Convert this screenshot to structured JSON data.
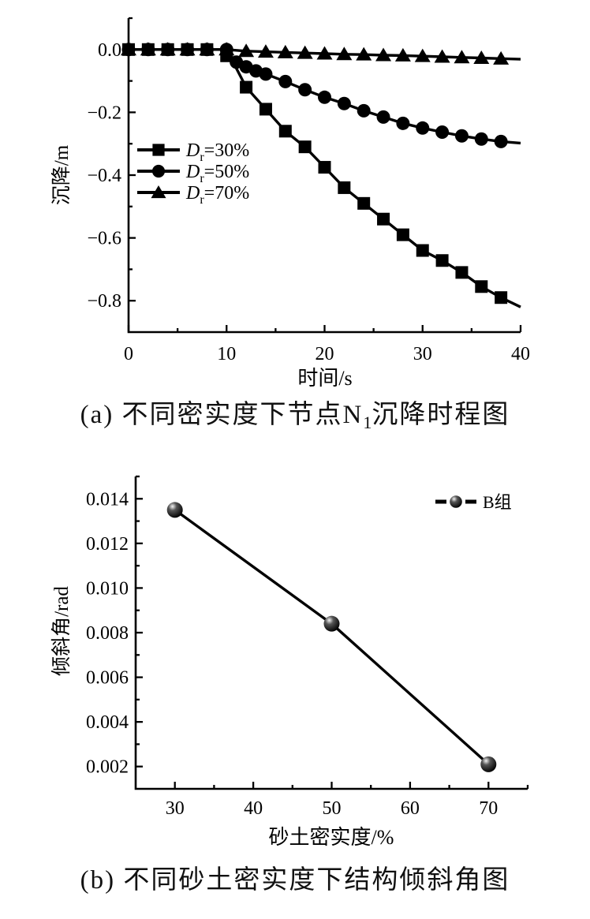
{
  "figure": {
    "background": "#ffffff",
    "ink_color": "#000000"
  },
  "chart_data": [
    {
      "id": "chart-a",
      "type": "line",
      "title": "",
      "xlabel": "时间/s",
      "ylabel": "沉降/m",
      "xlim": [
        0,
        40
      ],
      "ylim": [
        -0.9,
        0.1
      ],
      "grid": false,
      "x_ticks": {
        "major": [
          {
            "v": 0,
            "label": "0"
          },
          {
            "v": 10,
            "label": "10"
          },
          {
            "v": 20,
            "label": "20"
          },
          {
            "v": 30,
            "label": "30"
          },
          {
            "v": 40,
            "label": "40"
          }
        ],
        "minor": [
          5,
          15,
          25,
          35
        ]
      },
      "y_ticks": {
        "major": [
          {
            "v": 0,
            "label": "0.0"
          },
          {
            "v": -0.2,
            "label": "−0.2"
          },
          {
            "v": -0.4,
            "label": "−0.4"
          },
          {
            "v": -0.6,
            "label": "−0.6"
          },
          {
            "v": -0.8,
            "label": "−0.8"
          }
        ],
        "minor": [
          0.1,
          -0.1,
          -0.3,
          -0.5,
          -0.7
        ]
      },
      "legend": {
        "position": "inside-left",
        "items": [
          {
            "marker": "square",
            "label_main": "D",
            "label_italic": true,
            "label_sub": "r",
            "label_rest": "=30%"
          },
          {
            "marker": "circle",
            "label_main": "D",
            "label_italic": true,
            "label_sub": "r",
            "label_rest": "=50%"
          },
          {
            "marker": "triangle",
            "label_main": "D",
            "label_italic": true,
            "label_sub": "r",
            "label_rest": "=70%"
          }
        ]
      },
      "series": [
        {
          "id": "dr30",
          "name": "Dr=30%",
          "marker": "square",
          "color": "#000000",
          "line": [
            [
              0,
              0
            ],
            [
              2,
              0
            ],
            [
              4,
              0
            ],
            [
              6,
              0
            ],
            [
              8,
              0
            ],
            [
              9.5,
              0
            ],
            [
              10,
              -0.02
            ],
            [
              11,
              -0.06
            ],
            [
              12,
              -0.12
            ],
            [
              14,
              -0.19
            ],
            [
              16,
              -0.26
            ],
            [
              18,
              -0.31
            ],
            [
              20,
              -0.375
            ],
            [
              22,
              -0.44
            ],
            [
              24,
              -0.49
            ],
            [
              26,
              -0.54
            ],
            [
              28,
              -0.59
            ],
            [
              30,
              -0.64
            ],
            [
              32,
              -0.672
            ],
            [
              34,
              -0.71
            ],
            [
              36,
              -0.755
            ],
            [
              38,
              -0.79
            ],
            [
              40,
              -0.82
            ]
          ],
          "markers": [
            [
              0,
              0
            ],
            [
              2,
              0
            ],
            [
              4,
              0
            ],
            [
              6,
              0
            ],
            [
              8,
              0
            ],
            [
              10,
              -0.02
            ],
            [
              12,
              -0.12
            ],
            [
              14,
              -0.19
            ],
            [
              16,
              -0.26
            ],
            [
              18,
              -0.31
            ],
            [
              20,
              -0.375
            ],
            [
              22,
              -0.44
            ],
            [
              24,
              -0.49
            ],
            [
              26,
              -0.54
            ],
            [
              28,
              -0.59
            ],
            [
              30,
              -0.64
            ],
            [
              32,
              -0.672
            ],
            [
              34,
              -0.71
            ],
            [
              36,
              -0.755
            ],
            [
              38,
              -0.79
            ]
          ]
        },
        {
          "id": "dr50",
          "name": "Dr=50%",
          "marker": "circle",
          "color": "#000000",
          "line": [
            [
              0,
              0
            ],
            [
              2,
              0
            ],
            [
              4,
              0
            ],
            [
              6,
              0
            ],
            [
              8,
              0
            ],
            [
              10,
              0
            ],
            [
              10.5,
              -0.04
            ],
            [
              11,
              -0.03
            ],
            [
              11.5,
              -0.055
            ],
            [
              12,
              -0.05
            ],
            [
              12.5,
              -0.072
            ],
            [
              13,
              -0.063
            ],
            [
              14,
              -0.078
            ],
            [
              16,
              -0.102
            ],
            [
              18,
              -0.128
            ],
            [
              20,
              -0.152
            ],
            [
              22,
              -0.172
            ],
            [
              24,
              -0.195
            ],
            [
              26,
              -0.215
            ],
            [
              28,
              -0.235
            ],
            [
              30,
              -0.25
            ],
            [
              32,
              -0.263
            ],
            [
              34,
              -0.275
            ],
            [
              36,
              -0.285
            ],
            [
              38,
              -0.293
            ],
            [
              40,
              -0.298
            ]
          ],
          "markers": [
            [
              0,
              0
            ],
            [
              2,
              0
            ],
            [
              4,
              0
            ],
            [
              6,
              0
            ],
            [
              8,
              0
            ],
            [
              10,
              0
            ],
            [
              11,
              -0.04
            ],
            [
              12,
              -0.055
            ],
            [
              13,
              -0.068
            ],
            [
              14,
              -0.078
            ],
            [
              16,
              -0.102
            ],
            [
              18,
              -0.128
            ],
            [
              20,
              -0.152
            ],
            [
              22,
              -0.172
            ],
            [
              24,
              -0.195
            ],
            [
              26,
              -0.215
            ],
            [
              28,
              -0.235
            ],
            [
              30,
              -0.25
            ],
            [
              32,
              -0.263
            ],
            [
              34,
              -0.275
            ],
            [
              36,
              -0.285
            ],
            [
              38,
              -0.293
            ]
          ]
        },
        {
          "id": "dr70",
          "name": "Dr=70%",
          "marker": "triangle",
          "color": "#000000",
          "line": [
            [
              0,
              0
            ],
            [
              2,
              0
            ],
            [
              4,
              0
            ],
            [
              6,
              0
            ],
            [
              8,
              0
            ],
            [
              10,
              0
            ],
            [
              12,
              -0.005
            ],
            [
              14,
              -0.007
            ],
            [
              16,
              -0.009
            ],
            [
              18,
              -0.011
            ],
            [
              20,
              -0.013
            ],
            [
              22,
              -0.015
            ],
            [
              24,
              -0.016
            ],
            [
              26,
              -0.018
            ],
            [
              28,
              -0.019
            ],
            [
              30,
              -0.021
            ],
            [
              32,
              -0.023
            ],
            [
              34,
              -0.025
            ],
            [
              36,
              -0.027
            ],
            [
              38,
              -0.029
            ],
            [
              40,
              -0.031
            ]
          ],
          "markers": [
            [
              0,
              0
            ],
            [
              2,
              0
            ],
            [
              4,
              0
            ],
            [
              6,
              0
            ],
            [
              8,
              0
            ],
            [
              10,
              0
            ],
            [
              12,
              -0.005
            ],
            [
              14,
              -0.007
            ],
            [
              16,
              -0.009
            ],
            [
              18,
              -0.011
            ],
            [
              20,
              -0.013
            ],
            [
              22,
              -0.015
            ],
            [
              24,
              -0.016
            ],
            [
              26,
              -0.018
            ],
            [
              28,
              -0.019
            ],
            [
              30,
              -0.021
            ],
            [
              32,
              -0.023
            ],
            [
              34,
              -0.025
            ],
            [
              36,
              -0.027
            ],
            [
              38,
              -0.029
            ]
          ]
        }
      ],
      "caption": {
        "prefix": "(a) 不同密实度下节点N",
        "sub": "1",
        "suffix": "沉降时程图"
      }
    },
    {
      "id": "chart-b",
      "type": "line",
      "title": "",
      "xlabel": "砂土密实度/%",
      "ylabel": "倾斜角/rad",
      "xlim": [
        25,
        75
      ],
      "ylim": [
        0.001,
        0.015
      ],
      "grid": false,
      "x_ticks": {
        "major": [
          {
            "v": 30,
            "label": "30"
          },
          {
            "v": 40,
            "label": "40"
          },
          {
            "v": 50,
            "label": "50"
          },
          {
            "v": 60,
            "label": "60"
          },
          {
            "v": 70,
            "label": "70"
          }
        ],
        "minor": [
          35,
          45,
          55,
          65,
          75
        ]
      },
      "y_ticks": {
        "major": [
          {
            "v": 0.002,
            "label": "0.002"
          },
          {
            "v": 0.004,
            "label": "0.004"
          },
          {
            "v": 0.006,
            "label": "0.006"
          },
          {
            "v": 0.008,
            "label": "0.008"
          },
          {
            "v": 0.01,
            "label": "0.010"
          },
          {
            "v": 0.012,
            "label": "0.012"
          },
          {
            "v": 0.014,
            "label": "0.014"
          }
        ],
        "minor": [
          0.003,
          0.005,
          0.007,
          0.009,
          0.011,
          0.013,
          0.015
        ]
      },
      "legend": {
        "position": "inside-right",
        "items": [
          {
            "marker": "ball",
            "label_main": "B组",
            "label_italic": false,
            "label_sub": "",
            "label_rest": ""
          }
        ]
      },
      "series": [
        {
          "id": "b-group",
          "name": "B组",
          "marker": "ball",
          "color": "#000000",
          "line": [
            [
              30,
              0.0135
            ],
            [
              50,
              0.0084
            ],
            [
              70,
              0.0021
            ]
          ],
          "markers": [
            [
              30,
              0.0135
            ],
            [
              50,
              0.0084
            ],
            [
              70,
              0.0021
            ]
          ]
        }
      ],
      "caption": {
        "prefix": "(b) 不同砂土密实度下结构倾斜角图",
        "sub": "",
        "suffix": ""
      }
    }
  ]
}
